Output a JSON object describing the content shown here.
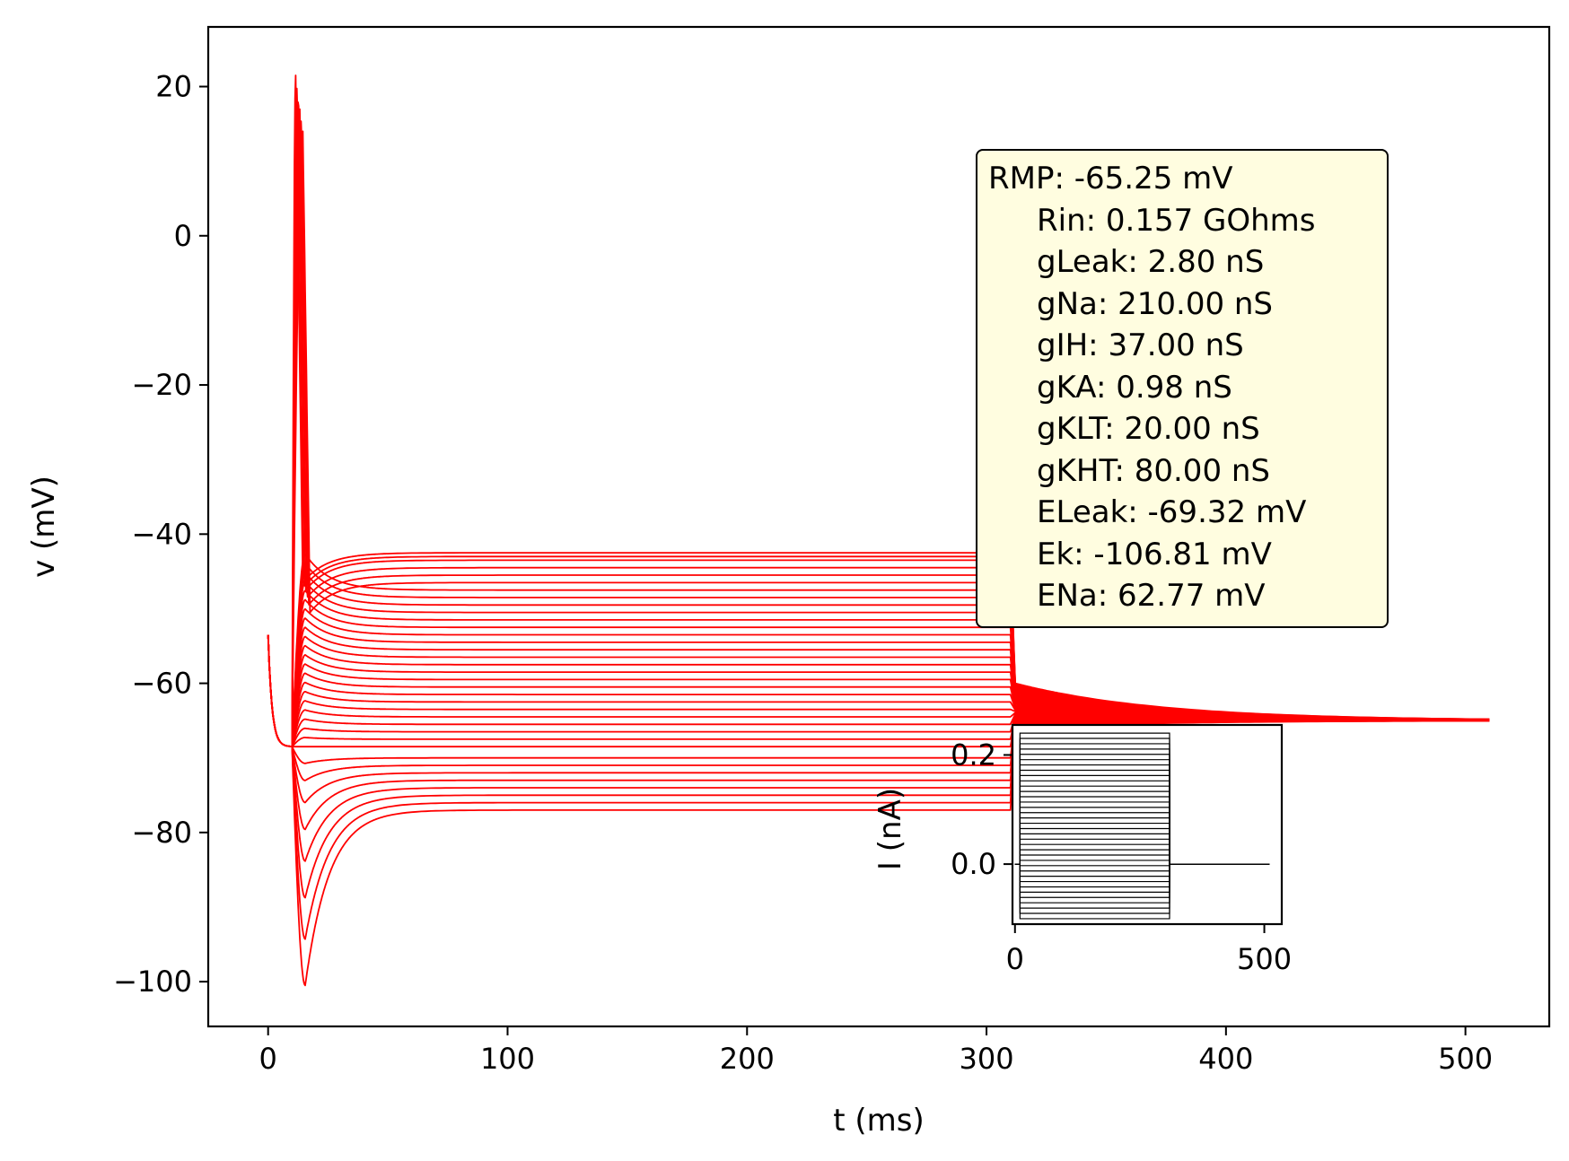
{
  "colors": {
    "trace": "#ff0000",
    "inset_trace": "#000000",
    "box_fill": "#fffde0"
  },
  "chart_data": [
    {
      "type": "line",
      "xlabel": "t (ms)",
      "ylabel": "v (mV)",
      "xlim": [
        -25,
        535
      ],
      "ylim": [
        -106,
        28
      ],
      "xticks": [
        0,
        100,
        200,
        300,
        400,
        500
      ],
      "xtick_labels": [
        "0",
        "100",
        "200",
        "300",
        "400",
        "500"
      ],
      "yticks": [
        20,
        0,
        -20,
        -40,
        -60,
        -80,
        -100
      ],
      "ytick_labels": [
        "20",
        "0",
        "−20",
        "−40",
        "−60",
        "−80",
        "−100"
      ],
      "grid": false,
      "description_of_traces": {
        "n_traces": 36,
        "t_start": 0,
        "t_end": 510,
        "stim_on": 10,
        "stim_off": 310,
        "initial_v": -53.5,
        "v_at_stim_on": -68.5,
        "steady_state_min": -77,
        "steady_state_max": -42.5,
        "undershoot_min": -100.5,
        "spike_peak": 21.5,
        "final_v": -65
      },
      "steady_state_levels": [
        -77,
        -76,
        -75,
        -74,
        -73,
        -72,
        -71,
        -70,
        -68.5,
        -67.5,
        -66.5,
        -65.5,
        -64.5,
        -63.5,
        -62.5,
        -61.5,
        -60.5,
        -59.5,
        -58.5,
        -57.5,
        -56.5,
        -55.5,
        -54.5,
        -53.5,
        -52.5,
        -51.5,
        -50.5,
        -49.5,
        -48.5,
        -47.5,
        -46.5,
        -45.5,
        -44.5,
        -43.5,
        -43,
        -42.5
      ]
    },
    {
      "type": "line",
      "ylabel": "I (nA)",
      "xlim": [
        -5,
        535
      ],
      "ylim": [
        -0.11,
        0.255
      ],
      "xticks": [
        0,
        500
      ],
      "xtick_labels": [
        "0",
        "500"
      ],
      "yticks": [
        0.2,
        0.0
      ],
      "ytick_labels": [
        "0.2",
        "0.0"
      ],
      "stim_on": 10,
      "stim_off": 310,
      "t_end": 510,
      "n_steps": 36,
      "i_min": -0.1,
      "i_max": 0.24
    }
  ],
  "stats": {
    "rmp": "RMP: -65.25 mV",
    "lines": [
      "Rin: 0.157 GOhms",
      "gLeak: 2.80 nS",
      "gNa: 210.00 nS",
      "gIH: 37.00 nS",
      "gKA: 0.98 nS",
      "gKLT: 20.00 nS",
      "gKHT: 80.00 nS",
      "ELeak: -69.32 mV",
      "Ek: -106.81 mV",
      "ENa: 62.77 mV"
    ]
  }
}
